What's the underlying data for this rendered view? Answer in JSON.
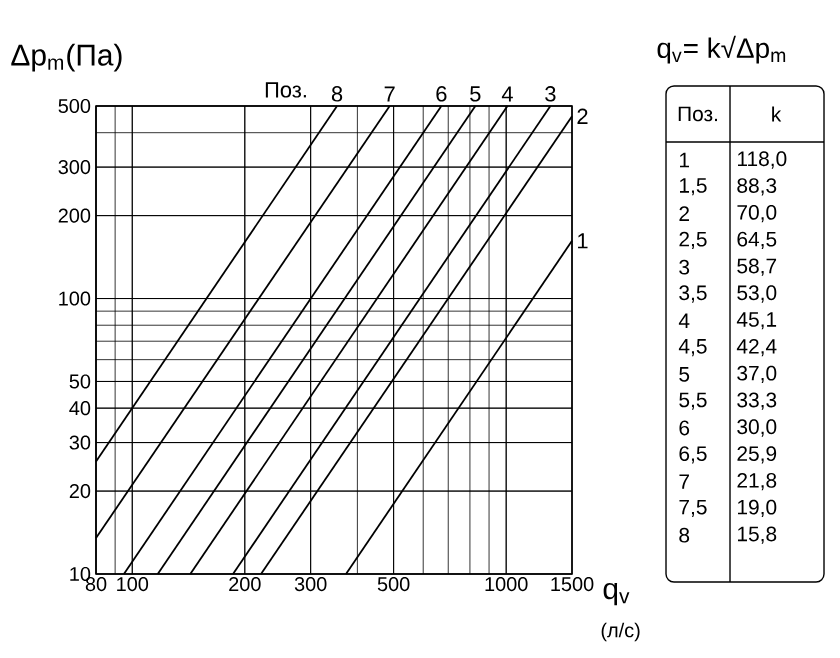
{
  "chart_data": {
    "type": "line",
    "ylabel": "Δp$_{m}$(Па)",
    "xlabel": "q$_{v}$",
    "xlim": [
      80,
      1500
    ],
    "ylim": [
      10,
      500
    ],
    "xticks": [
      80,
      100,
      200,
      300,
      500,
      1000,
      1500
    ],
    "yticks": [
      10,
      20,
      30,
      40,
      50,
      100,
      200,
      300,
      500
    ],
    "log": "xy",
    "grid": true,
    "marker": "none",
    "line_style": "solid",
    "series": [
      {
        "name": "1",
        "color": "#000000",
        "x": [
          373,
          1500
        ],
        "values": [
          10,
          162
        ]
      },
      {
        "name": "2",
        "color": "#000000",
        "x": [
          221,
          1500
        ],
        "values": [
          10,
          459
        ]
      },
      {
        "name": "3",
        "color": "#000000",
        "x": [
          186,
          1313
        ],
        "values": [
          10,
          500
        ]
      },
      {
        "name": "4",
        "color": "#000000",
        "x": [
          143,
          1008
        ],
        "values": [
          10,
          500
        ]
      },
      {
        "name": "5",
        "color": "#000000",
        "x": [
          117,
          827
        ],
        "values": [
          10,
          500
        ]
      },
      {
        "name": "6",
        "color": "#000000",
        "x": [
          95,
          671
        ],
        "values": [
          10,
          500
        ]
      },
      {
        "name": "7",
        "color": "#000000",
        "x": [
          80,
          488
        ],
        "values": [
          13.5,
          500
        ]
      },
      {
        "name": "8",
        "color": "#000000",
        "x": [
          80,
          353
        ],
        "values": [
          25.6,
          500
        ]
      }
    ],
    "annotations": [
      "Поз.",
      "q$_{v}$= k√Δp$_{m}$",
      "(л/с)",
      "Поз.",
      "k",
      "1",
      "118,0",
      "1,5",
      "88,3",
      "2",
      "70,0",
      "2,5",
      "64,5",
      "3",
      "58,7",
      "3,5",
      "53,0",
      "4",
      "45,1",
      "4,5",
      "42,4",
      "5",
      "37,0",
      "5,5",
      "33,3",
      "6",
      "30,0",
      "6,5",
      "25,9",
      "7",
      "21,8",
      "7,5",
      "19,0",
      "8",
      "15,8"
    ]
  }
}
